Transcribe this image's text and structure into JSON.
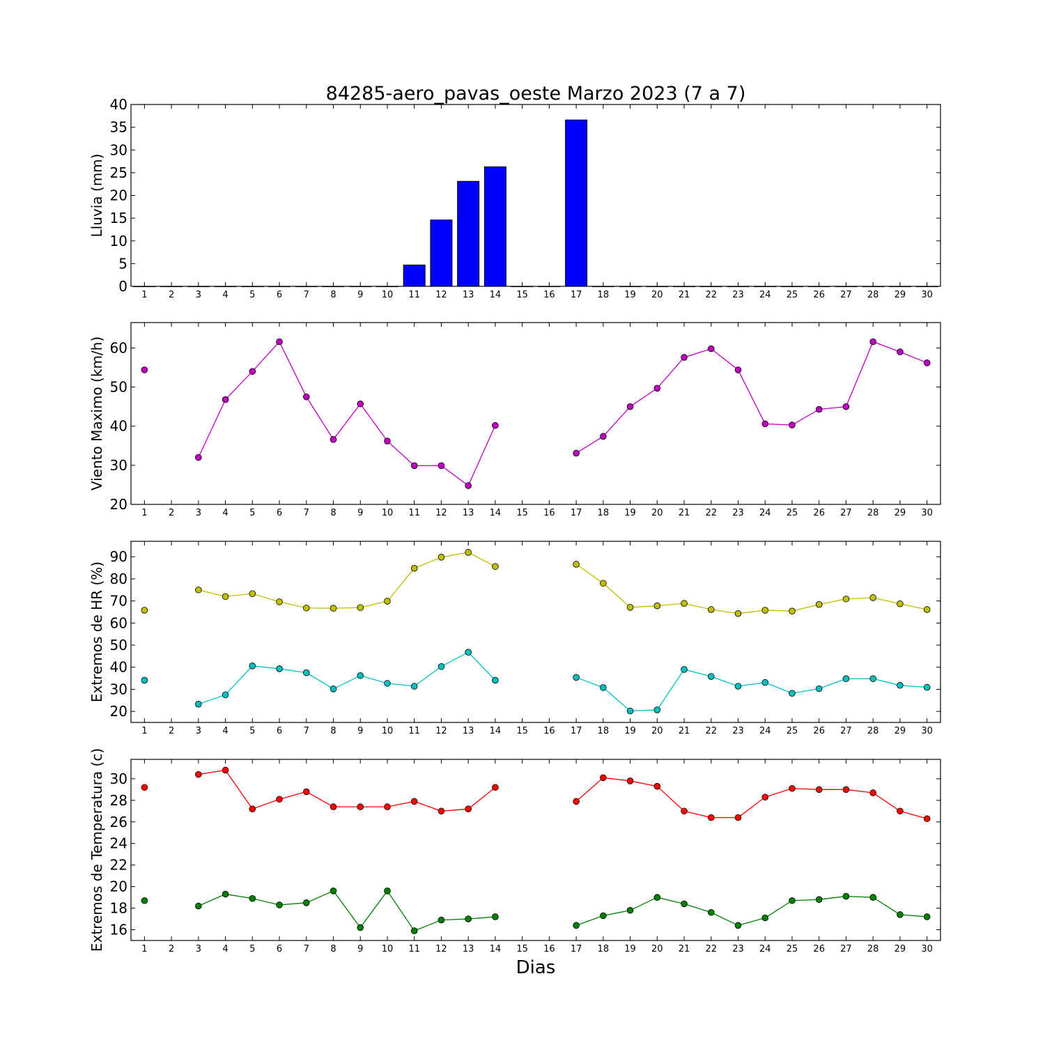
{
  "title": "84285-aero_pavas_oeste Marzo 2023  (7 a 7)",
  "xlabel": "Dias",
  "colors": {
    "rain": "#0000ff",
    "wind": "#bf00bf",
    "hr_max": "#bfbf00",
    "hr_min": "#00bfbf",
    "temp_max": "#ff0000",
    "temp_min": "#007f00"
  },
  "chart_data": [
    {
      "type": "bar",
      "ylabel": "Lluvia (mm)",
      "ylim": [
        0,
        40
      ],
      "yticks": [
        0,
        5,
        10,
        15,
        20,
        25,
        30,
        35,
        40
      ],
      "x": [
        1,
        2,
        3,
        4,
        5,
        6,
        7,
        8,
        9,
        10,
        11,
        12,
        13,
        14,
        15,
        16,
        17,
        18,
        19,
        20,
        21,
        22,
        23,
        24,
        25,
        26,
        27,
        28,
        29,
        30
      ],
      "series": [
        {
          "color": "#0000ff",
          "values": [
            0,
            0,
            0,
            0,
            0,
            0,
            0,
            0,
            0,
            0,
            4.7,
            14.6,
            23.1,
            26.3,
            0,
            0,
            36.6,
            0,
            0,
            0,
            0,
            0,
            0,
            0,
            0,
            0,
            0,
            0,
            0,
            0
          ]
        }
      ]
    },
    {
      "type": "line",
      "ylabel": "Viento Maximo (km/h)",
      "ylim": [
        20,
        66.5
      ],
      "yticks": [
        20,
        30,
        40,
        50,
        60
      ],
      "x": [
        1,
        2,
        3,
        4,
        5,
        6,
        7,
        8,
        9,
        10,
        11,
        12,
        13,
        14,
        15,
        16,
        17,
        18,
        19,
        20,
        21,
        22,
        23,
        24,
        25,
        26,
        27,
        28,
        29,
        30
      ],
      "series": [
        {
          "color": "#bf00bf",
          "values": [
            54.4,
            null,
            32.0,
            46.8,
            54.0,
            61.6,
            47.5,
            36.6,
            45.7,
            36.2,
            29.9,
            29.9,
            24.8,
            40.2,
            null,
            null,
            33.1,
            37.4,
            45.0,
            49.7,
            57.6,
            59.8,
            54.4,
            40.6,
            40.3,
            44.3,
            45.0,
            61.6,
            59.0,
            56.2
          ]
        }
      ]
    },
    {
      "type": "line",
      "ylabel": "Extremos de HR (%)",
      "ylim": [
        15,
        97
      ],
      "yticks": [
        20,
        30,
        40,
        50,
        60,
        70,
        80,
        90
      ],
      "x": [
        1,
        2,
        3,
        4,
        5,
        6,
        7,
        8,
        9,
        10,
        11,
        12,
        13,
        14,
        15,
        16,
        17,
        18,
        19,
        20,
        21,
        22,
        23,
        24,
        25,
        26,
        27,
        28,
        29,
        30
      ],
      "series": [
        {
          "color": "#bfbf00",
          "values": [
            65.8,
            null,
            75.0,
            72.0,
            73.3,
            69.6,
            66.8,
            66.7,
            67.0,
            69.9,
            84.8,
            89.8,
            92.0,
            85.6,
            null,
            null,
            86.6,
            78.0,
            67.1,
            67.8,
            68.9,
            66.1,
            64.3,
            65.8,
            65.4,
            68.4,
            70.9,
            71.5,
            68.7,
            66.1
          ]
        },
        {
          "color": "#00bfbf",
          "values": [
            34.1,
            null,
            23.3,
            27.5,
            40.6,
            39.3,
            37.5,
            30.2,
            36.2,
            32.7,
            31.4,
            40.3,
            46.8,
            34.1,
            null,
            null,
            35.4,
            30.8,
            20.2,
            20.7,
            39.0,
            35.8,
            31.4,
            33.1,
            28.2,
            30.3,
            34.8,
            34.8,
            31.8,
            30.9
          ]
        }
      ]
    },
    {
      "type": "line",
      "ylabel": "Extremos de Temperatura (c)",
      "ylim": [
        15,
        31.8
      ],
      "yticks": [
        16,
        18,
        20,
        22,
        24,
        26,
        28,
        30
      ],
      "x": [
        1,
        2,
        3,
        4,
        5,
        6,
        7,
        8,
        9,
        10,
        11,
        12,
        13,
        14,
        15,
        16,
        17,
        18,
        19,
        20,
        21,
        22,
        23,
        24,
        25,
        26,
        27,
        28,
        29,
        30
      ],
      "series": [
        {
          "color": "#ff0000",
          "values": [
            29.2,
            null,
            30.4,
            30.8,
            27.2,
            28.1,
            28.8,
            27.4,
            27.4,
            27.4,
            27.9,
            27.0,
            27.2,
            29.2,
            null,
            null,
            27.9,
            30.1,
            29.8,
            29.3,
            27.0,
            26.4,
            26.4,
            28.3,
            29.1,
            29.0,
            29.0,
            28.7,
            27.0,
            26.3
          ]
        },
        {
          "color": "#007f00",
          "values": [
            18.7,
            null,
            18.2,
            19.3,
            18.9,
            18.3,
            18.5,
            19.6,
            16.2,
            19.6,
            15.9,
            16.9,
            17.0,
            17.2,
            null,
            null,
            16.4,
            17.3,
            17.8,
            19.0,
            18.4,
            17.6,
            16.4,
            17.1,
            18.7,
            18.8,
            19.1,
            19.0,
            17.4,
            17.2
          ]
        }
      ]
    }
  ]
}
